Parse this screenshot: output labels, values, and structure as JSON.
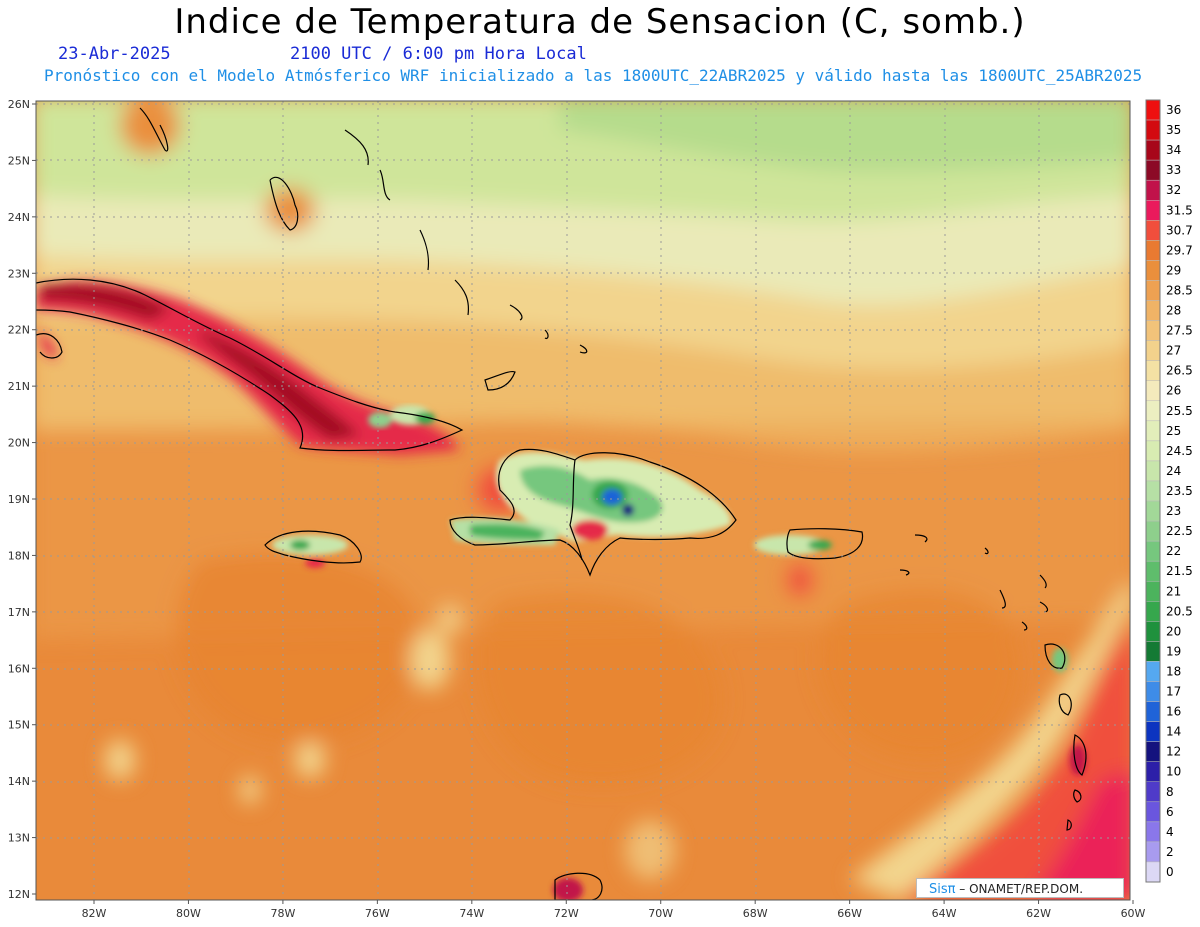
{
  "header": {
    "title": "Indice de Temperatura de Sensacion (C, somb.)",
    "date": "23-Abr-2025",
    "time": "2100 UTC / 6:00 pm Hora Local",
    "forecast": "Pronóstico con el Modelo Atmósferico WRF inicializado a las 1800UTC_22ABR2025 y válido hasta las  1800UTC_25ABR2025"
  },
  "axes": {
    "lat_labels": [
      "26N",
      "25N",
      "24N",
      "23N",
      "22N",
      "21N",
      "20N",
      "19N",
      "18N",
      "17N",
      "16N",
      "15N",
      "14N",
      "13N",
      "12N"
    ],
    "lon_labels": [
      "82W",
      "80W",
      "78W",
      "76W",
      "74W",
      "72W",
      "70W",
      "68W",
      "66W",
      "64W",
      "62W",
      "60W"
    ]
  },
  "colorbar": {
    "levels": [
      "0",
      "2",
      "4",
      "6",
      "8",
      "10",
      "12",
      "14",
      "16",
      "17",
      "18",
      "19",
      "20",
      "20.5",
      "21",
      "21.5",
      "22",
      "22.5",
      "23",
      "23.5",
      "24",
      "24.5",
      "25",
      "25.5",
      "26",
      "26.5",
      "27",
      "27.5",
      "28",
      "28.5",
      "29",
      "29.7",
      "30.7",
      "31.5",
      "32",
      "33",
      "34",
      "35",
      "36"
    ],
    "colors": [
      "#dcd8f5",
      "#a89bef",
      "#8a77ea",
      "#6a56de",
      "#4f3bc9",
      "#2c1fa8",
      "#14127e",
      "#0c34c0",
      "#1f63d8",
      "#3e8ce8",
      "#55a8f0",
      "#147a34",
      "#1f913d",
      "#36a74d",
      "#4cb35d",
      "#5fbd6c",
      "#76c77e",
      "#8ecf8c",
      "#a2d898",
      "#b6e0a5",
      "#c8e6ab",
      "#d8ecb2",
      "#e2eeba",
      "#ecefc1",
      "#f4eabc",
      "#f4e1a4",
      "#f3d28c",
      "#f2c37a",
      "#f0b366",
      "#eea152",
      "#ea8f3c",
      "#e97a31",
      "#f14e3c",
      "#ea1a5c",
      "#c1124a",
      "#8c0a26",
      "#a7061a",
      "#d30a10",
      "#ee1010"
    ]
  },
  "credit": {
    "brand": "Sisπ",
    "text": "– ONAMET/REP.DOM."
  }
}
